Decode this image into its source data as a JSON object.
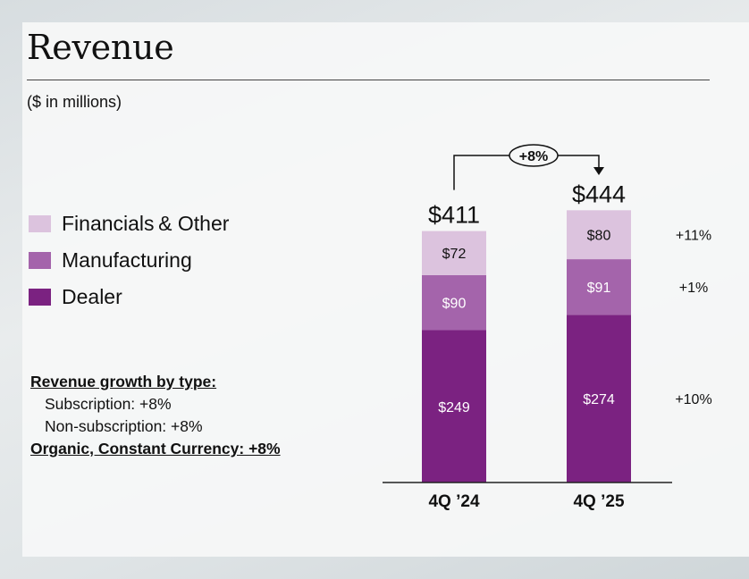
{
  "title": "Revenue",
  "subtitle": "($ in millions)",
  "legend": [
    {
      "label": "Financials & Other",
      "color": "#dcc3de"
    },
    {
      "label": "Manufacturing",
      "color": "#a464ab"
    },
    {
      "label": "Dealer",
      "color": "#7b2281"
    }
  ],
  "notes": {
    "heading": "Revenue growth by type:",
    "line1": "Subscription: +8%",
    "line2": "Non-subscription: +8%",
    "footer": "Organic, Constant Currency: +8%"
  },
  "chart_data": {
    "type": "bar",
    "stacked": true,
    "categories": [
      "4Q ’24",
      "4Q ’25"
    ],
    "series": [
      {
        "name": "Dealer",
        "color": "#7b2281",
        "values": [
          249,
          274
        ],
        "labels": [
          "$249",
          "$274"
        ],
        "growth": "+10%"
      },
      {
        "name": "Manufacturing",
        "color": "#a464ab",
        "values": [
          90,
          91
        ],
        "labels": [
          "$90",
          "$91"
        ],
        "growth": "+1%"
      },
      {
        "name": "Financials & Other",
        "color": "#dcc3de",
        "values": [
          72,
          80
        ],
        "labels": [
          "$72",
          "$80"
        ],
        "growth": "+11%"
      }
    ],
    "totals": [
      411,
      444
    ],
    "total_labels": [
      "$411",
      "$444"
    ],
    "change_label": "+8%",
    "title": "Revenue",
    "ylabel": "$ in millions",
    "ylim": [
      0,
      444
    ]
  }
}
